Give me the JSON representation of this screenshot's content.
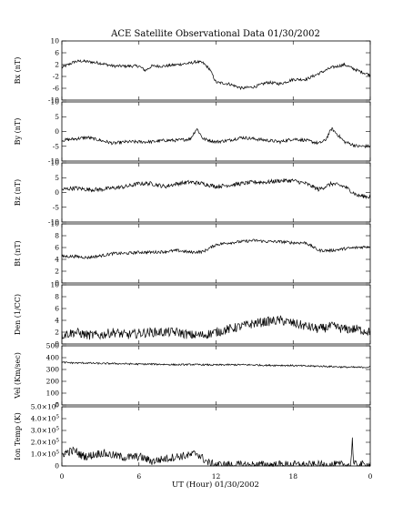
{
  "chart_data": {
    "type": "line",
    "title": "ACE Satellite Observational Data   01/30/2002",
    "xlabel": "UT (Hour)   01/30/2002",
    "x_ticks": [
      "0",
      "6",
      "12",
      "18",
      "0"
    ],
    "xlim": [
      0,
      24
    ],
    "grid": false,
    "line_color": "#000000",
    "panels": [
      {
        "ylabel": "Bx (nT)",
        "ylim": [
          -10,
          10
        ],
        "y_ticks": [
          "10",
          "6",
          "2",
          "-2",
          "-6",
          "-10"
        ],
        "y_tick_values": [
          10,
          6,
          2,
          -2,
          -6,
          -10
        ],
        "noise": 0.5,
        "series": [
          {
            "x": [
              0,
              0.5,
              1,
              1.5,
              2,
              3,
              4,
              5,
              6,
              6.5,
              7,
              8,
              9,
              10,
              10.5,
              11,
              11.5,
              12,
              13,
              14,
              15,
              16,
              17,
              18,
              19,
              20,
              21,
              22,
              23,
              24
            ],
            "y": [
              1,
              2,
              3,
              3.2,
              3,
              2.5,
              1.5,
              1.5,
              1.5,
              0,
              1.5,
              1.5,
              2,
              2.5,
              3,
              2.5,
              0.5,
              -4,
              -4.5,
              -6,
              -5.5,
              -4,
              -4.5,
              -3,
              -3,
              -1,
              1,
              2,
              0,
              -1.5
            ]
          }
        ]
      },
      {
        "ylabel": "By (nT)",
        "ylim": [
          -10,
          10
        ],
        "y_ticks": [
          "10",
          "5",
          "0",
          "-5",
          "-10"
        ],
        "y_tick_values": [
          10,
          5,
          0,
          -5,
          -10
        ],
        "noise": 0.55,
        "series": [
          {
            "x": [
              0,
              1,
              2,
              3,
              4,
              5,
              6,
              7,
              8,
              9,
              10,
              10.5,
              11,
              12,
              13,
              14,
              15,
              16,
              17,
              18,
              19,
              20,
              20.5,
              21,
              22,
              23,
              24
            ],
            "y": [
              -3,
              -2.5,
              -2,
              -3,
              -4,
              -3.5,
              -3.5,
              -3.5,
              -3,
              -3,
              -2.5,
              1,
              -2.5,
              -3.5,
              -3,
              -2,
              -2.5,
              -3,
              -3.5,
              -2.5,
              -3,
              -4,
              -3,
              1,
              -3.5,
              -5,
              -5
            ]
          }
        ]
      },
      {
        "ylabel": "Bz (nT)",
        "ylim": [
          -10,
          10
        ],
        "y_ticks": [
          "10",
          "5",
          "0",
          "-5",
          "-10"
        ],
        "y_tick_values": [
          10,
          5,
          0,
          -5,
          -10
        ],
        "noise": 0.7,
        "series": [
          {
            "x": [
              0,
              1,
              2,
              3,
              4,
              5,
              6,
              7,
              8,
              9,
              10,
              11,
              12,
              13,
              14,
              15,
              16,
              17,
              18,
              19,
              20,
              21,
              22,
              23,
              24
            ],
            "y": [
              1,
              1.5,
              1,
              1,
              1.5,
              2,
              3,
              3,
              2,
              3,
              3.5,
              3,
              2,
              2.5,
              3,
              3.5,
              3.5,
              4,
              4,
              3,
              1,
              3,
              2,
              -1,
              -1.5
            ]
          }
        ]
      },
      {
        "ylabel": "Bt (nT)",
        "ylim": [
          0,
          10
        ],
        "y_ticks": [
          "10",
          "8",
          "6",
          "4",
          "2",
          "0"
        ],
        "y_tick_values": [
          10,
          8,
          6,
          4,
          2,
          0
        ],
        "noise": 0.25,
        "series": [
          {
            "x": [
              0,
              1,
              2,
              3,
              4,
              5,
              6,
              7,
              8,
              9,
              10,
              11,
              12,
              13,
              14,
              15,
              16,
              17,
              18,
              19,
              20,
              21,
              22,
              23,
              24
            ],
            "y": [
              4.5,
              4.5,
              4.3,
              4.6,
              5,
              5,
              5.2,
              5.2,
              5.3,
              5.5,
              5.2,
              5.3,
              6.5,
              6.8,
              7,
              7.2,
              7,
              7,
              6.8,
              6.8,
              5.5,
              5.5,
              5.8,
              6,
              6.2
            ]
          }
        ]
      },
      {
        "ylabel": "Den (1/CC)",
        "ylim": [
          0,
          10
        ],
        "y_ticks": [
          "10",
          "8",
          "6",
          "4",
          "2",
          "0"
        ],
        "y_tick_values": [
          10,
          8,
          6,
          4,
          2,
          0
        ],
        "noise": 0.8,
        "series": [
          {
            "x": [
              0,
              1,
              2,
              3,
              4,
              5,
              6,
              7,
              8,
              9,
              10,
              11,
              12,
              13,
              14,
              15,
              16,
              17,
              18,
              19,
              20,
              21,
              22,
              23,
              24
            ],
            "y": [
              1.5,
              2,
              1.5,
              1.5,
              2,
              1.5,
              1.8,
              2,
              2,
              2,
              1.5,
              1.5,
              2,
              2.5,
              3,
              3.5,
              3.8,
              4,
              3.5,
              3,
              2.5,
              3,
              2.5,
              2.5,
              2
            ]
          }
        ]
      },
      {
        "ylabel": "Vel (Km/sec)",
        "ylim": [
          0,
          500
        ],
        "y_ticks": [
          "500",
          "400",
          "300",
          "200",
          "100",
          "0"
        ],
        "y_tick_values": [
          500,
          400,
          300,
          200,
          100,
          0
        ],
        "noise": 7,
        "series": [
          {
            "x": [
              0,
              1,
              2,
              3,
              4,
              5,
              6,
              7,
              8,
              9,
              10,
              11,
              12,
              13,
              14,
              15,
              16,
              17,
              18,
              19,
              20,
              21,
              22,
              23,
              24
            ],
            "y": [
              360,
              355,
              355,
              350,
              350,
              348,
              345,
              345,
              343,
              340,
              342,
              340,
              338,
              340,
              340,
              338,
              335,
              335,
              333,
              330,
              328,
              325,
              320,
              318,
              320
            ]
          }
        ]
      },
      {
        "ylabel": "Ion Temp (K)",
        "ylim": [
          0,
          500000
        ],
        "y_ticks": [
          "5.0",
          "4.0",
          "3.0",
          "2.0",
          "1.0",
          "0"
        ],
        "y_tick_values": [
          500000,
          400000,
          300000,
          200000,
          100000,
          0
        ],
        "y_tick_exp": "10",
        "y_tick_pow": "5",
        "noise": 35000,
        "series": [
          {
            "x": [
              0,
              0.5,
              1,
              1.5,
              2,
              3,
              4,
              5,
              6,
              7,
              8,
              9,
              10,
              10.5,
              11,
              11.5,
              12,
              13,
              14,
              15,
              16,
              17,
              18,
              19,
              20,
              21,
              22,
              22.5,
              22.6,
              22.7,
              23,
              24
            ],
            "y": [
              100000,
              120000,
              130000,
              90000,
              80000,
              110000,
              90000,
              70000,
              80000,
              40000,
              60000,
              80000,
              90000,
              110000,
              60000,
              20000,
              10000,
              10000,
              8000,
              8000,
              10000,
              10000,
              10000,
              8000,
              8000,
              8000,
              10000,
              10000,
              260000,
              10000,
              10000,
              8000
            ]
          }
        ]
      }
    ]
  }
}
